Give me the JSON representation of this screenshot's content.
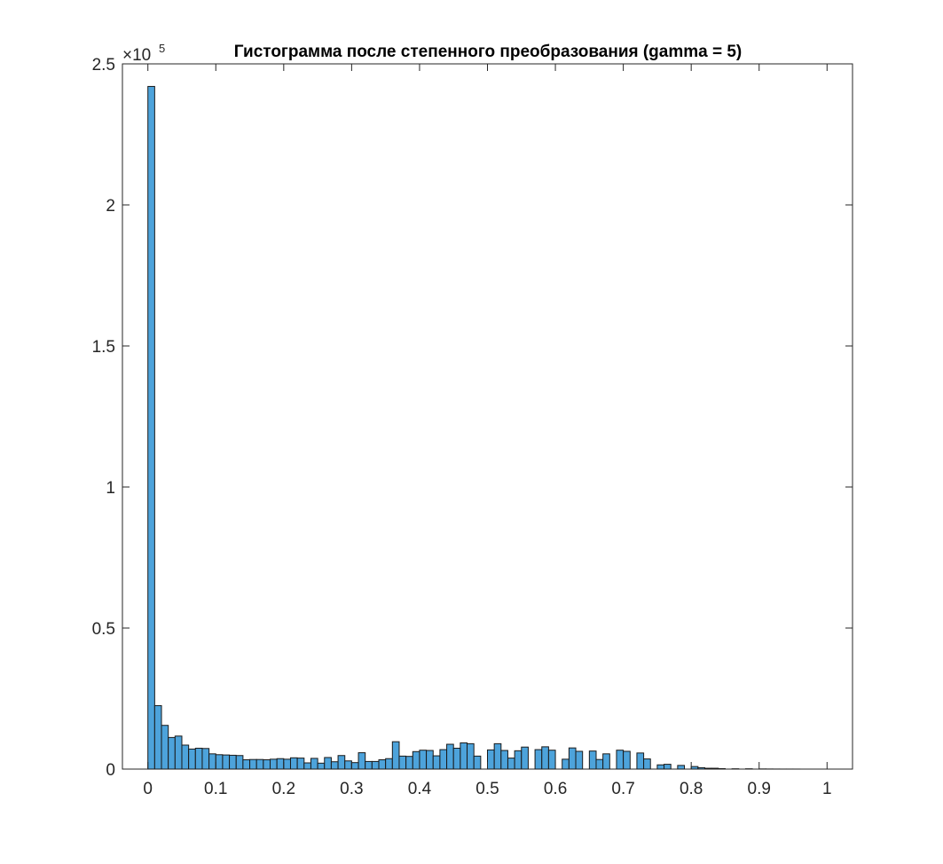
{
  "chart_data": {
    "type": "bar",
    "title": "Гистограмма после степенного преобразования (gamma = 5)",
    "xlabel": "",
    "ylabel": "",
    "y_exponent_label": "×10",
    "y_exponent_power": "5",
    "xlim": [
      -0.0375,
      1.0375
    ],
    "ylim": [
      0,
      250000
    ],
    "x_ticks": [
      0,
      0.1,
      0.2,
      0.3,
      0.4,
      0.5,
      0.6,
      0.7,
      0.8,
      0.9,
      1
    ],
    "x_tick_labels": [
      "0",
      "0.1",
      "0.2",
      "0.3",
      "0.4",
      "0.5",
      "0.6",
      "0.7",
      "0.8",
      "0.9",
      "1"
    ],
    "y_ticks": [
      0,
      50000,
      100000,
      150000,
      200000,
      250000
    ],
    "y_tick_labels": [
      "0",
      "0.5",
      "1",
      "1.5",
      "2",
      "2.5"
    ],
    "bin_width": 0.01,
    "bin_start": 0,
    "values": [
      242000,
      22500,
      15500,
      11200,
      11700,
      8500,
      7100,
      7400,
      7300,
      5400,
      5100,
      5000,
      4900,
      4800,
      3300,
      3400,
      3400,
      3300,
      3500,
      3700,
      3500,
      4000,
      3900,
      2200,
      3800,
      2100,
      4100,
      2600,
      4800,
      2900,
      2300,
      5800,
      2700,
      2700,
      3300,
      3700,
      9700,
      4600,
      4500,
      6200,
      6700,
      6600,
      4700,
      6900,
      8800,
      7400,
      9300,
      9000,
      4600,
      0,
      6800,
      9000,
      6600,
      3900,
      6500,
      7800,
      0,
      6900,
      7900,
      6700,
      0,
      3500,
      7500,
      6300,
      0,
      6400,
      3400,
      5400,
      0,
      6700,
      6300,
      0,
      5700,
      3600,
      0,
      1500,
      1700,
      0,
      1300,
      0,
      900,
      500,
      300,
      300,
      150,
      0,
      100,
      0,
      100,
      0,
      50,
      30,
      20,
      10,
      10,
      5,
      0,
      0,
      0,
      0
    ],
    "bar_color": "#4DA3DB",
    "edge_color": "#1a1a1a",
    "grid": false,
    "legend": "none"
  }
}
